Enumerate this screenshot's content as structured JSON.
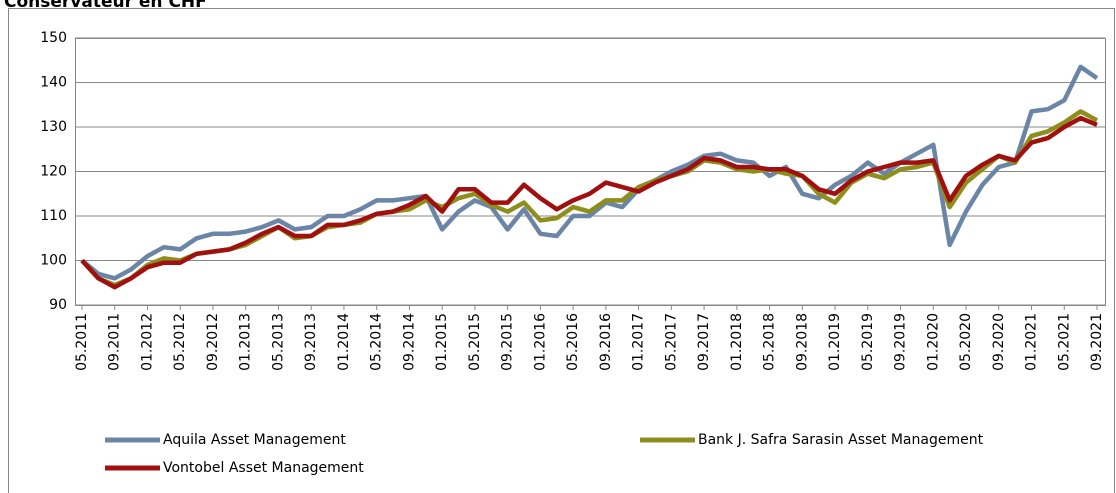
{
  "chart_data": {
    "type": "line",
    "title": "Conservateur en CHF",
    "categories": [
      "05.2011",
      null,
      "09.2011",
      null,
      "01.2012",
      null,
      "05.2012",
      null,
      "09.2012",
      null,
      "01.2013",
      null,
      "05.2013",
      null,
      "09.2013",
      null,
      "01.2014",
      null,
      "05.2014",
      null,
      "09.2014",
      null,
      "01.2015",
      null,
      "05.2015",
      null,
      "09.2015",
      null,
      "01.2016",
      null,
      "05.2016",
      null,
      "09.2016",
      null,
      "01.2017",
      null,
      "05.2017",
      null,
      "09.2017",
      null,
      "01.2018",
      null,
      "05.2018",
      null,
      "09.2018",
      null,
      "01.2019",
      null,
      "05.2019",
      null,
      "09.2019",
      null,
      "01.2020",
      null,
      "05.2020",
      null,
      "09.2020",
      null,
      "01.2021",
      null,
      "05.2021",
      null,
      "09.2021"
    ],
    "series": [
      {
        "name": "Aquila Asset Management",
        "color": "#6a85a6",
        "values": [
          100,
          97,
          96,
          98,
          101,
          103,
          102.5,
          105,
          106,
          106,
          106.5,
          107.5,
          109,
          107,
          107.5,
          110,
          110,
          111.5,
          113.5,
          113.5,
          114,
          114.5,
          107,
          111,
          113.5,
          112,
          107,
          111.5,
          106,
          105.5,
          110,
          110,
          113,
          112,
          116,
          118,
          120,
          121.5,
          123.5,
          124,
          122.5,
          122,
          119,
          121,
          115,
          114,
          117,
          119,
          122,
          119.5,
          122,
          124,
          126,
          103.5,
          111,
          117,
          121,
          122,
          133.5,
          134,
          136,
          143.5,
          141
        ]
      },
      {
        "name": "Bank J. Safra Sarasin Asset Management",
        "color": "#8e8e1c",
        "values": [
          100,
          96,
          94.5,
          96,
          99,
          100.5,
          100,
          101.5,
          102,
          102.5,
          103.5,
          105.5,
          107.5,
          105,
          105.5,
          107.5,
          108,
          108.5,
          110.5,
          111,
          111.5,
          113.5,
          112,
          114,
          115,
          112.5,
          111,
          113,
          109,
          109.5,
          112,
          111,
          113.5,
          113.5,
          116.5,
          118,
          119,
          120,
          122.5,
          122,
          120.5,
          120,
          120.5,
          119.5,
          119,
          115,
          113,
          117.5,
          119.5,
          118.5,
          120.5,
          121,
          122,
          112,
          117.5,
          120.5,
          123.5,
          122,
          128,
          129,
          131,
          133.5,
          131.5
        ]
      },
      {
        "name": "Vontobel Asset Management",
        "color": "#a0100f",
        "values": [
          100,
          96,
          94,
          96,
          98.5,
          99.5,
          99.5,
          101.5,
          102,
          102.5,
          104,
          106,
          107.5,
          105.5,
          105.5,
          108,
          108,
          109,
          110.5,
          111,
          112.5,
          114.5,
          111,
          116,
          116,
          113,
          113,
          117,
          114,
          111.5,
          113.5,
          115,
          117.5,
          116.5,
          115.5,
          117.5,
          119,
          120.5,
          123,
          122.5,
          121,
          121,
          120.5,
          120.5,
          119,
          116,
          115,
          118,
          120,
          121,
          122,
          122,
          122.5,
          113.5,
          119,
          121.5,
          123.5,
          122.5,
          126.5,
          127.5,
          130,
          132,
          130.5
        ]
      }
    ],
    "ylim": [
      90,
      150
    ],
    "yticks": [
      90,
      100,
      110,
      120,
      130,
      140,
      150
    ],
    "grid": true
  }
}
